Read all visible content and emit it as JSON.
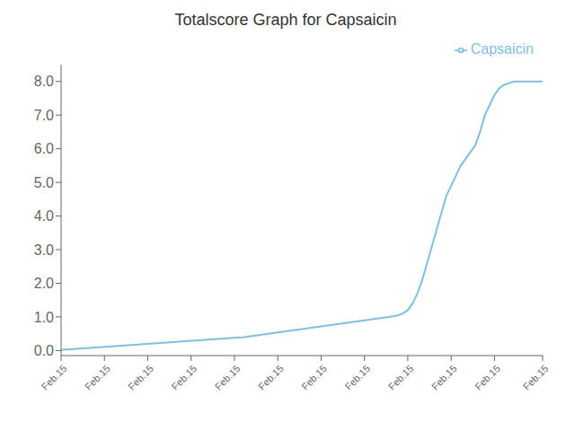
{
  "chart_data": {
    "type": "line",
    "title": "Totalscore Graph for Capsaicin",
    "x": [
      0,
      1,
      2,
      3,
      4,
      5,
      6,
      7,
      8,
      9,
      10,
      11,
      12,
      13,
      14,
      15,
      16,
      17,
      18,
      19,
      20,
      21,
      22,
      23,
      24,
      25,
      26,
      27,
      28,
      29,
      30,
      31,
      32,
      33,
      34,
      35,
      36,
      37,
      38,
      39,
      40,
      41,
      42,
      43,
      44,
      45,
      46,
      47,
      48,
      49,
      50,
      51,
      52,
      53,
      54,
      55,
      56,
      57,
      58,
      59,
      60,
      61,
      62,
      63,
      64,
      65,
      66,
      67,
      68,
      69,
      70,
      71,
      72,
      73,
      74,
      75,
      76,
      77,
      78,
      79,
      80,
      81,
      82,
      83,
      84,
      85,
      86,
      87,
      88,
      89,
      90,
      91,
      92,
      93,
      94,
      95,
      96,
      97,
      98,
      99,
      100
    ],
    "series": [
      {
        "name": "Capsaicin",
        "color": "#7fbfdf",
        "values": [
          0.02,
          0.03,
          0.04,
          0.05,
          0.06,
          0.07,
          0.08,
          0.09,
          0.1,
          0.11,
          0.12,
          0.13,
          0.14,
          0.15,
          0.16,
          0.17,
          0.18,
          0.19,
          0.2,
          0.21,
          0.22,
          0.23,
          0.24,
          0.25,
          0.26,
          0.27,
          0.28,
          0.29,
          0.3,
          0.31,
          0.32,
          0.33,
          0.34,
          0.35,
          0.36,
          0.37,
          0.38,
          0.39,
          0.4,
          0.42,
          0.44,
          0.46,
          0.48,
          0.5,
          0.52,
          0.54,
          0.56,
          0.58,
          0.6,
          0.62,
          0.64,
          0.66,
          0.68,
          0.7,
          0.72,
          0.74,
          0.76,
          0.78,
          0.8,
          0.82,
          0.84,
          0.86,
          0.88,
          0.9,
          0.92,
          0.94,
          0.96,
          0.98,
          1.0,
          1.02,
          1.05,
          1.1,
          1.2,
          1.4,
          1.7,
          2.1,
          2.6,
          3.1,
          3.6,
          4.1,
          4.6,
          4.9,
          5.2,
          5.5,
          5.7,
          5.9,
          6.1,
          6.5,
          7.0,
          7.3,
          7.6,
          7.8,
          7.9,
          7.95,
          8.0,
          8.0,
          8.0,
          8.0,
          8.0,
          8.0,
          8.0
        ]
      }
    ],
    "xlim": [
      0,
      100
    ],
    "xticks": [
      {
        "value": 0,
        "label": "Feb.15"
      },
      {
        "value": 9,
        "label": "Feb.15"
      },
      {
        "value": 18,
        "label": "Feb.15"
      },
      {
        "value": 27,
        "label": "Feb.15"
      },
      {
        "value": 36,
        "label": "Feb.15"
      },
      {
        "value": 45,
        "label": "Feb.15"
      },
      {
        "value": 54,
        "label": "Feb.15"
      },
      {
        "value": 63,
        "label": "Feb.15"
      },
      {
        "value": 72,
        "label": "Feb.15"
      },
      {
        "value": 81,
        "label": "Feb.15"
      },
      {
        "value": 90,
        "label": "Feb.15"
      },
      {
        "value": 100,
        "label": "Feb.15"
      }
    ],
    "ylim": [
      -0.15,
      8.5
    ],
    "yticks": [
      {
        "value": 0,
        "label": "0.0"
      },
      {
        "value": 1,
        "label": "1.0"
      },
      {
        "value": 2,
        "label": "2.0"
      },
      {
        "value": 3,
        "label": "3.0"
      },
      {
        "value": 4,
        "label": "4.0"
      },
      {
        "value": 5,
        "label": "5.0"
      },
      {
        "value": 6,
        "label": "6.0"
      },
      {
        "value": 7,
        "label": "7.0"
      },
      {
        "value": 8,
        "label": "8.0"
      }
    ],
    "grid": false,
    "legend": "upper right"
  }
}
